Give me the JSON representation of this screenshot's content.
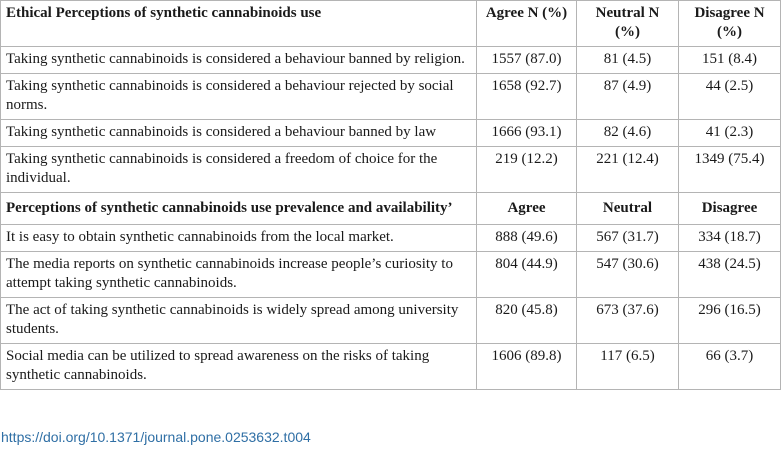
{
  "section1": {
    "headers": [
      "Ethical Perceptions of synthetic cannabinoids use",
      "Agree N (%)",
      "Neutral N (%)",
      "Disagree N (%)"
    ],
    "rows": [
      [
        "Taking synthetic cannabinoids is considered a behaviour banned by religion.",
        "1557 (87.0)",
        "81 (4.5)",
        "151 (8.4)"
      ],
      [
        "Taking synthetic cannabinoids is considered a behaviour rejected by social norms.",
        "1658 (92.7)",
        "87 (4.9)",
        "44 (2.5)"
      ],
      [
        "Taking synthetic cannabinoids is considered a behaviour banned by law",
        "1666 (93.1)",
        "82 (4.6)",
        "41 (2.3)"
      ],
      [
        "Taking synthetic cannabinoids is considered a freedom of choice for the individual.",
        "219 (12.2)",
        "221 (12.4)",
        "1349 (75.4)"
      ]
    ]
  },
  "section2": {
    "headers": [
      "Perceptions of synthetic cannabinoids use prevalence and availability’",
      "Agree",
      "Neutral",
      "Disagree"
    ],
    "rows": [
      [
        "It is easy to obtain synthetic cannabinoids from the local market.",
        "888 (49.6)",
        "567 (31.7)",
        "334 (18.7)"
      ],
      [
        "The media reports on synthetic cannabinoids increase people’s curiosity to attempt taking synthetic cannabinoids.",
        "804 (44.9)",
        "547 (30.6)",
        "438 (24.5)"
      ],
      [
        "The act of taking synthetic cannabinoids is widely spread among university students.",
        "820 (45.8)",
        "673 (37.6)",
        "296 (16.5)"
      ],
      [
        "Social media can be utilized to spread awareness on the risks of taking synthetic cannabinoids.",
        "1606 (89.8)",
        "117 (6.5)",
        "66 (3.7)"
      ]
    ]
  },
  "doi": "https://doi.org/10.1371/journal.pone.0253632.t004"
}
